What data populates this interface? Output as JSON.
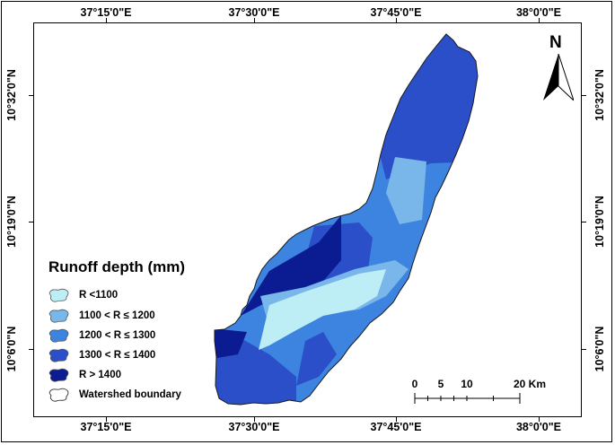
{
  "map": {
    "top_labels": [
      "37°15'0\"E",
      "37°30'0\"E",
      "37°45'0\"E",
      "38°0'0\"E"
    ],
    "bottom_labels": [
      "37°15'0\"E",
      "37°30'0\"E",
      "37°45'0\"E",
      "38°0'0\"E"
    ],
    "left_labels": [
      "10°32'0\"N",
      "10°19'0\"N",
      "10°6'0\"N"
    ],
    "right_labels": [
      "10°32'0\"N",
      "10°19'0\"N",
      "10°6'0\"N"
    ]
  },
  "legend": {
    "title": "Runoff depth (mm)",
    "items": [
      {
        "label": "R <1100",
        "color": "#bdeef5"
      },
      {
        "label": "1100 < R ≤ 1200",
        "color": "#79b6ea"
      },
      {
        "label": "1200 < R ≤ 1300",
        "color": "#3d83e0"
      },
      {
        "label": "1300 < R ≤ 1400",
        "color": "#2a4fc8"
      },
      {
        "label": "R > 1400",
        "color": "#0b1b91"
      },
      {
        "label": "Watershed boundary",
        "color": "#ffffff"
      }
    ]
  },
  "north_arrow": {
    "label": "N",
    "icon": "north-arrow-icon"
  },
  "scale_bar": {
    "labels": [
      "0",
      "5",
      "10",
      "20 Km"
    ]
  }
}
